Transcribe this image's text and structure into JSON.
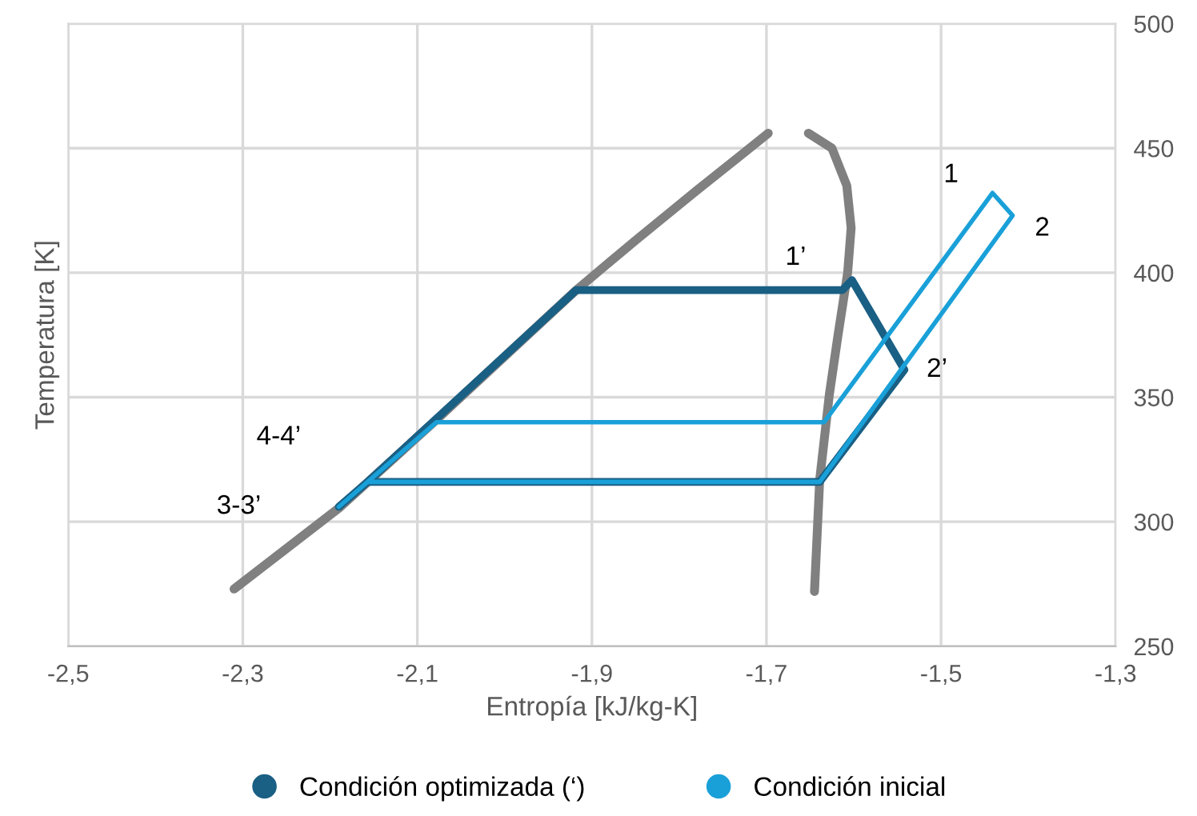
{
  "chart_data": {
    "type": "line",
    "xlabel": "Entropía [kJ/kg-K]",
    "ylabel": "Temperatura [K]",
    "xlim": [
      -2.5,
      -1.3
    ],
    "xticks": [
      {
        "value": -2.5,
        "label": "-2,5"
      },
      {
        "value": -2.3,
        "label": "-2,3"
      },
      {
        "value": -2.1,
        "label": "-2,1"
      },
      {
        "value": -1.9,
        "label": "-1,9"
      },
      {
        "value": -1.7,
        "label": "-1,7"
      },
      {
        "value": -1.5,
        "label": "-1,5"
      },
      {
        "value": -1.3,
        "label": "-1,3"
      }
    ],
    "ylim": [
      250,
      500
    ],
    "yticks": [
      250,
      300,
      350,
      400,
      450,
      500
    ],
    "grid": true,
    "legend": "bottom",
    "marker": "none",
    "line_style": "solid",
    "series": [
      {
        "color": "#808080",
        "x": [
          -2.31,
          -2.188,
          -2.078,
          -1.918,
          -1.85,
          -1.78,
          -1.73,
          -1.698
        ],
        "values": [
          273,
          306,
          341,
          393,
          413,
          433,
          447,
          456
        ]
      },
      {
        "color": "#808080",
        "x": [
          -1.652,
          -1.625,
          -1.608,
          -1.603,
          -1.607,
          -1.618,
          -1.628,
          -1.639,
          -1.645
        ],
        "values": [
          456,
          450,
          435,
          418,
          400,
          375,
          351,
          317,
          272
        ]
      },
      {
        "name": "Condición optimizada (‘)",
        "color": "#1a5f84",
        "x": [
          -2.19,
          -2.157,
          -1.918,
          -1.613,
          -1.602,
          -1.542,
          -1.639,
          -2.157
        ],
        "values": [
          306,
          316,
          393,
          393,
          397,
          361,
          316,
          316
        ]
      },
      {
        "name": "Condición inicial",
        "color": "#1aa0d8",
        "x": [
          -2.19,
          -2.157,
          -2.078,
          -1.634,
          -1.441,
          -1.418,
          -1.639,
          -2.157
        ],
        "values": [
          306,
          316,
          340,
          340,
          432,
          423,
          316,
          316
        ]
      }
    ],
    "annotations": [
      {
        "text": "1",
        "x": -1.441,
        "y": 432
      },
      {
        "text": "2",
        "x": -1.418,
        "y": 423
      },
      {
        "text": "1’",
        "x": -1.602,
        "y": 397
      },
      {
        "text": "2’",
        "x": -1.542,
        "y": 361
      },
      {
        "text": "4-4’",
        "x": -2.157,
        "y": 316
      },
      {
        "text": "3-3’",
        "x": -2.19,
        "y": 306
      }
    ]
  }
}
